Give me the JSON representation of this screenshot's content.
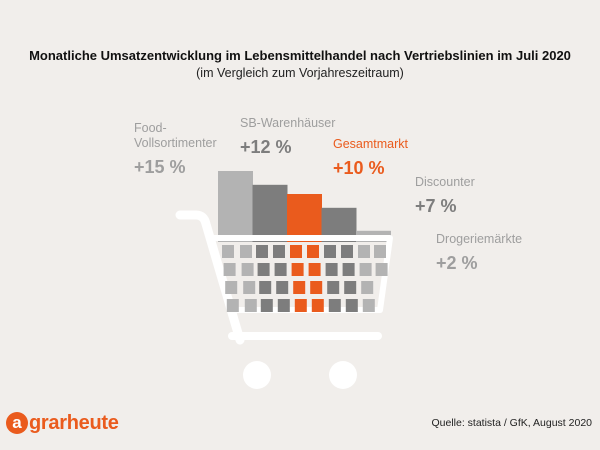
{
  "header": {
    "title": "Monatliche Umsatzentwicklung im Lebensmittelhandel nach Vertriebslinien im Juli 2020",
    "subtitle": "(im Vergleich zum Vorjahreszeitraum)"
  },
  "chart_data": {
    "type": "bar",
    "title": "Monatliche Umsatzentwicklung im Lebensmittelhandel nach Vertriebslinien im Juli 2020",
    "subtitle": "(im Vergleich zum Vorjahreszeitraum)",
    "categories": [
      "Food-Vollsortimenter",
      "SB-Warenhäuser",
      "Gesamtmarkt",
      "Discounter",
      "Drogeriemärkte"
    ],
    "values": [
      15,
      12,
      10,
      7,
      2
    ],
    "value_labels": [
      "+15 %",
      "+12 %",
      "+10 %",
      "+7 %",
      "+2 %"
    ],
    "ylim": [
      0,
      15
    ],
    "grid": false,
    "legend": "none",
    "colors": {
      "Food-Vollsortimenter": "#b3b3b3",
      "SB-Warenhäuser": "#7d7d7d",
      "Gesamtmarkt": "#ea5b1d",
      "Discounter": "#7d7d7d",
      "Drogeriemärkte": "#b3b3b3"
    },
    "label_colors": {
      "default": "#9e9e9e",
      "highlight": "#ea5b1d"
    }
  },
  "labels": {
    "food": {
      "line1": "Food-",
      "line2": "Vollsortimenter",
      "value": "+15 %"
    },
    "sb": {
      "line1": "SB-Warenhäuser",
      "value": "+12 %"
    },
    "gesamt": {
      "line1": "Gesamtmarkt",
      "value": "+10 %"
    },
    "discounter": {
      "line1": "Discounter",
      "value": "+7 %"
    },
    "drogerie": {
      "line1": "Drogeriemärkte",
      "value": "+2 %"
    }
  },
  "footer": {
    "logo_mark": "a",
    "logo_text": "grarheute",
    "source": "Quelle: statista / GfK, August 2020"
  },
  "icons": [
    "shopping-cart-icon"
  ]
}
